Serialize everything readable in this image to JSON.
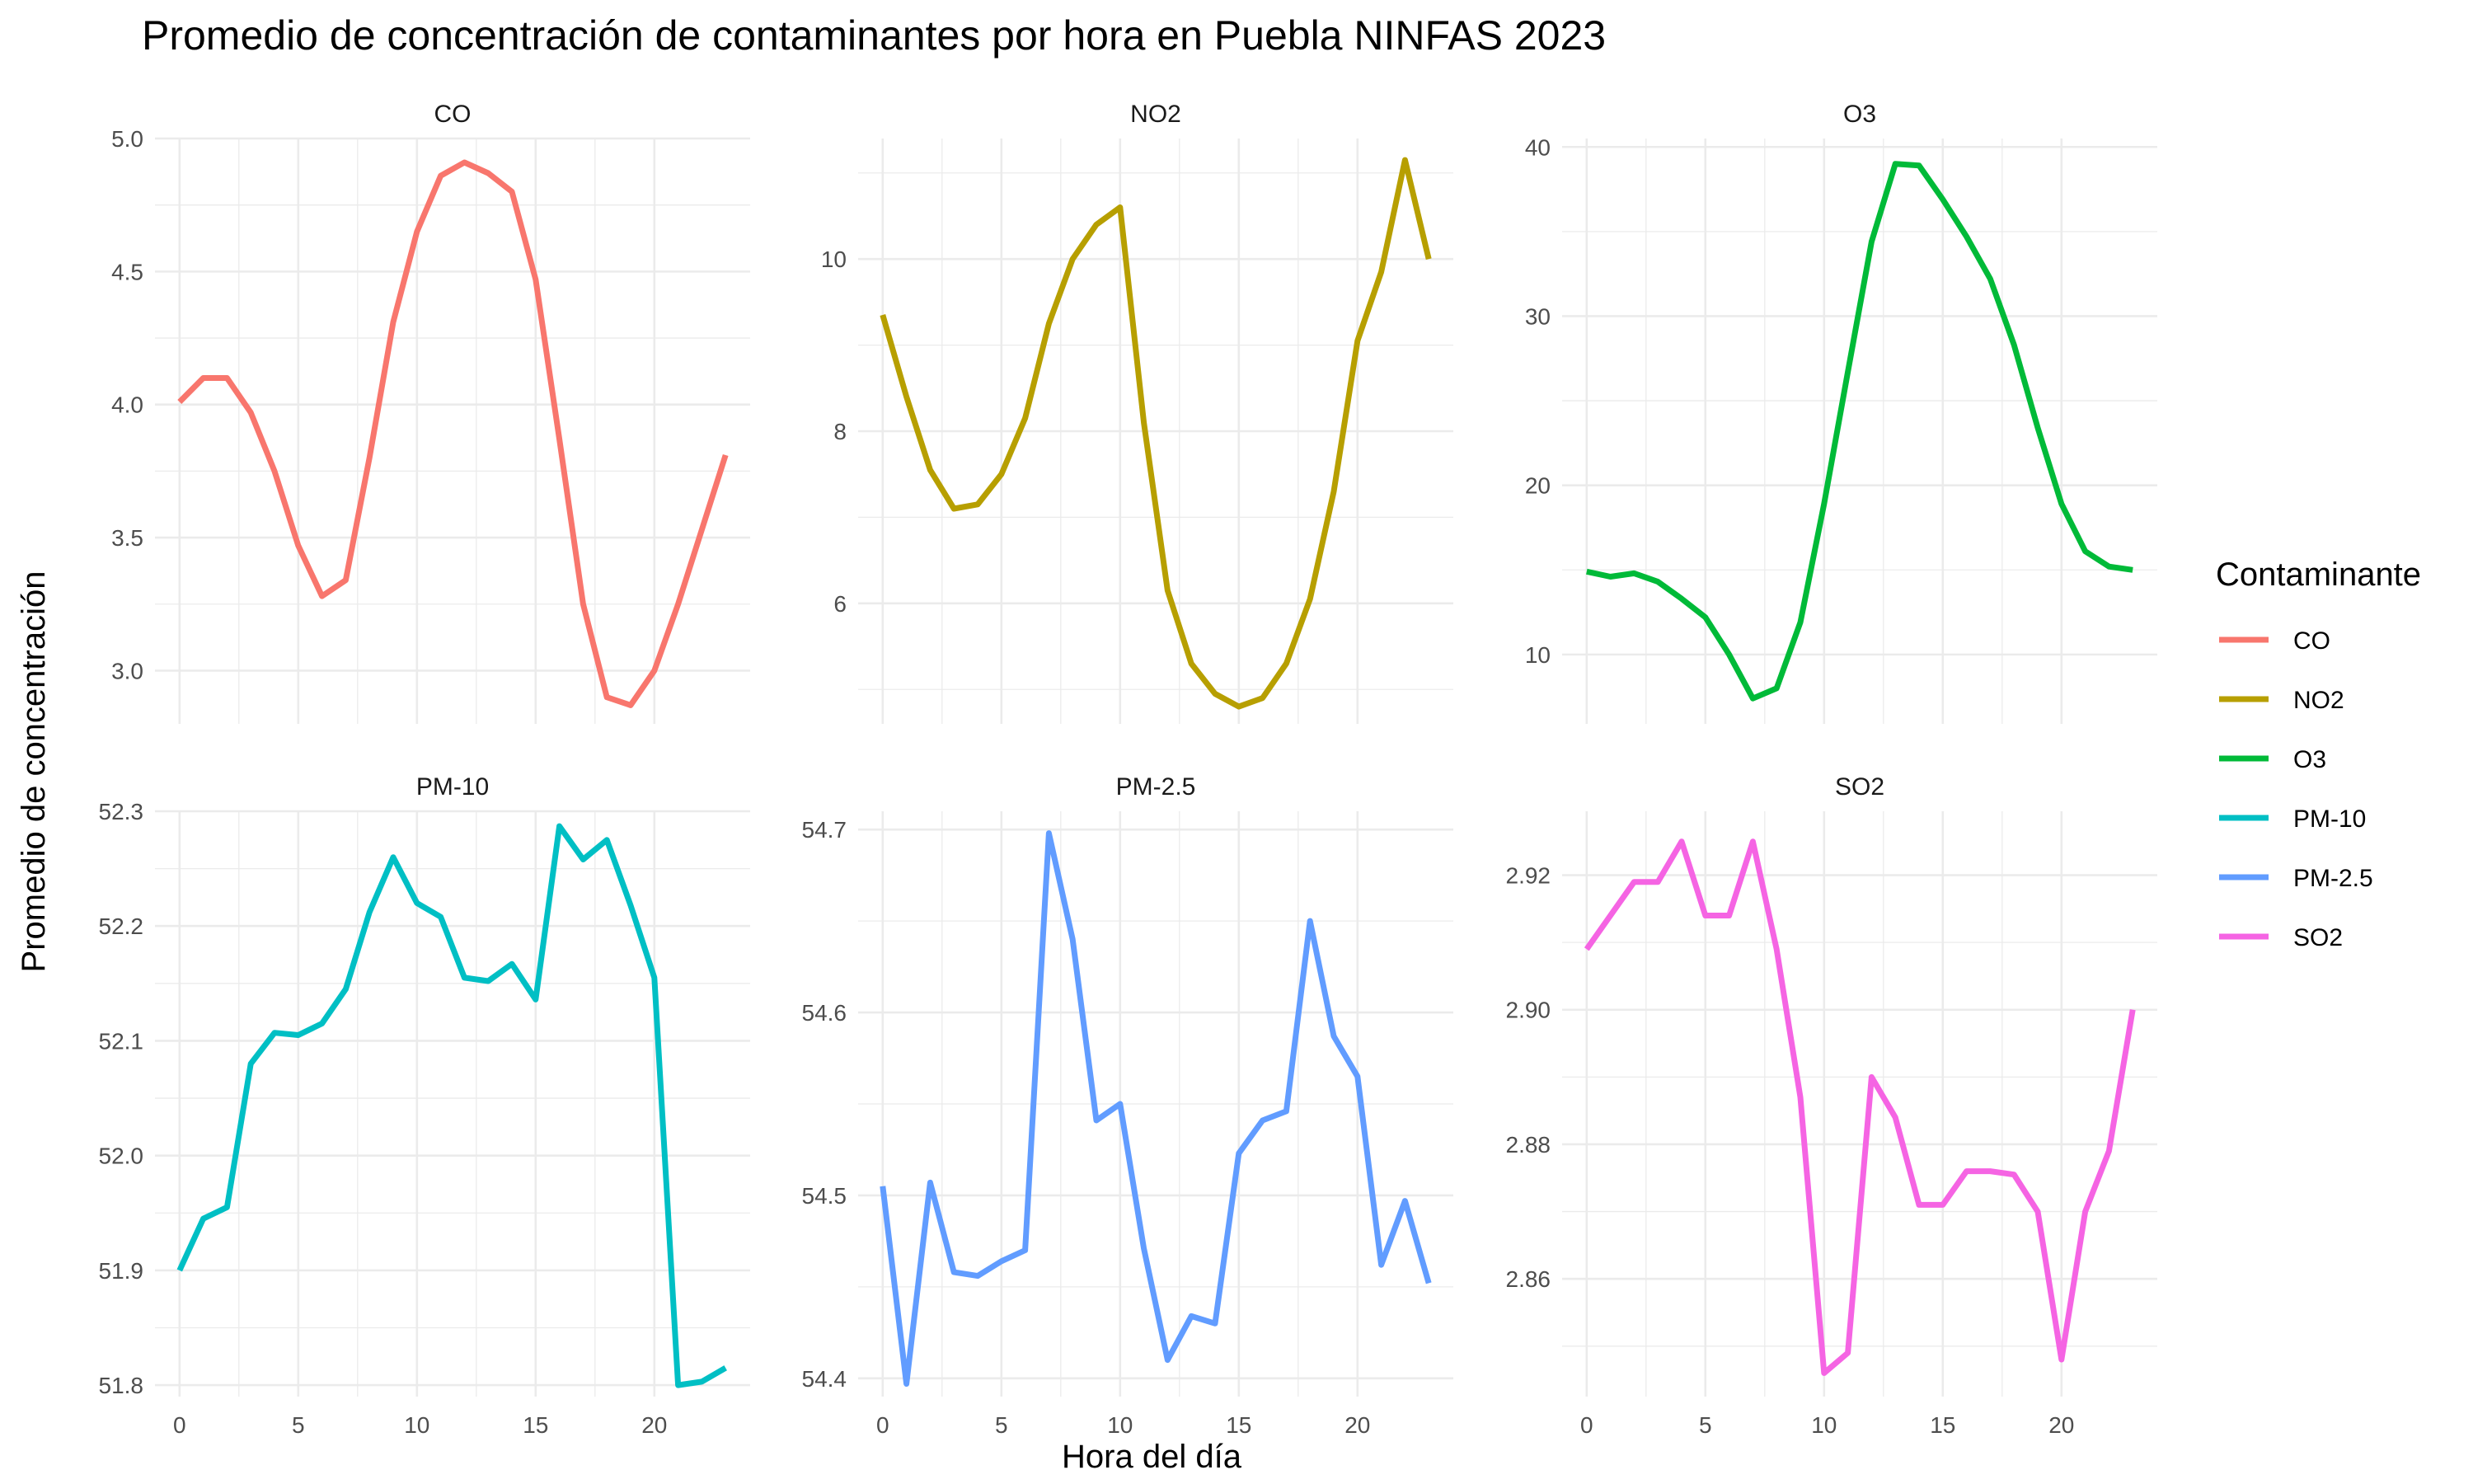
{
  "chart_data": {
    "type": "line",
    "title": "Promedio de concentración de contaminantes por hora en Puebla NINFAS 2023",
    "xlabel": "Hora del día",
    "ylabel": "Promedio de concentración",
    "legend": {
      "title": "Contaminante",
      "placement": "right"
    },
    "x": [
      0,
      1,
      2,
      3,
      4,
      5,
      6,
      7,
      8,
      9,
      10,
      11,
      12,
      13,
      14,
      15,
      16,
      17,
      18,
      19,
      20,
      21,
      22,
      23
    ],
    "xlim": [
      0,
      23
    ],
    "x_ticks": [
      0,
      5,
      10,
      15,
      20
    ],
    "grid": true,
    "panels": [
      {
        "name": "CO",
        "color": "#F8766D",
        "ylim": [
          2.8,
          5.0
        ],
        "y_ticks": [
          3.0,
          3.5,
          4.0,
          4.5,
          5.0
        ],
        "tick_decimals": 1,
        "values": [
          4.01,
          4.1,
          4.1,
          3.97,
          3.75,
          3.47,
          3.28,
          3.34,
          3.8,
          4.31,
          4.65,
          4.86,
          4.91,
          4.87,
          4.8,
          4.47,
          3.87,
          3.25,
          2.9,
          2.87,
          3.0,
          3.25,
          3.53,
          3.81
        ]
      },
      {
        "name": "NO2",
        "color": "#B79F00",
        "ylim": [
          4.6,
          11.4
        ],
        "y_ticks": [
          6,
          8,
          10
        ],
        "tick_decimals": 0,
        "values": [
          9.35,
          8.4,
          7.55,
          7.1,
          7.15,
          7.5,
          8.15,
          9.25,
          10.0,
          10.4,
          10.6,
          8.1,
          6.15,
          5.3,
          4.95,
          4.8,
          4.9,
          5.3,
          6.05,
          7.3,
          9.05,
          9.85,
          11.15,
          10.0
        ]
      },
      {
        "name": "O3",
        "color": "#00BA38",
        "ylim": [
          5.9,
          40.5
        ],
        "y_ticks": [
          10,
          20,
          30,
          40
        ],
        "tick_decimals": 0,
        "values": [
          14.9,
          14.6,
          14.8,
          14.3,
          13.3,
          12.2,
          10.0,
          7.4,
          8.0,
          11.9,
          18.9,
          26.7,
          34.4,
          39.0,
          38.9,
          36.9,
          34.7,
          32.2,
          28.3,
          23.4,
          18.9,
          16.1,
          15.2,
          15.0
        ]
      },
      {
        "name": "PM-10",
        "color": "#00BFC4",
        "ylim": [
          51.79,
          52.3
        ],
        "y_ticks": [
          51.8,
          51.9,
          52.0,
          52.1,
          52.2,
          52.3
        ],
        "tick_decimals": 1,
        "values": [
          51.9,
          51.945,
          51.955,
          52.08,
          52.107,
          52.105,
          52.115,
          52.145,
          52.212,
          52.26,
          52.22,
          52.208,
          52.155,
          52.152,
          52.167,
          52.136,
          52.287,
          52.258,
          52.275,
          52.218,
          52.155,
          51.8,
          51.803,
          51.815
        ]
      },
      {
        "name": "PM-2.5",
        "color": "#619CFF",
        "ylim": [
          54.39,
          54.71
        ],
        "y_ticks": [
          54.4,
          54.5,
          54.6,
          54.7
        ],
        "tick_decimals": 1,
        "values": [
          54.505,
          54.397,
          54.507,
          54.458,
          54.456,
          54.464,
          54.47,
          54.698,
          54.64,
          54.541,
          54.55,
          54.471,
          54.41,
          54.434,
          54.43,
          54.523,
          54.541,
          54.546,
          54.65,
          54.587,
          54.565,
          54.462,
          54.497,
          54.452
        ]
      },
      {
        "name": "SO2",
        "color": "#F564E3",
        "ylim": [
          2.8425,
          2.9295
        ],
        "y_ticks": [
          2.86,
          2.88,
          2.9,
          2.92
        ],
        "tick_decimals": 2,
        "values": [
          2.909,
          2.914,
          2.919,
          2.919,
          2.925,
          2.914,
          2.914,
          2.925,
          2.909,
          2.887,
          2.846,
          2.849,
          2.89,
          2.884,
          2.871,
          2.871,
          2.876,
          2.876,
          2.8755,
          2.87,
          2.848,
          2.87,
          2.879,
          2.9
        ]
      }
    ]
  }
}
